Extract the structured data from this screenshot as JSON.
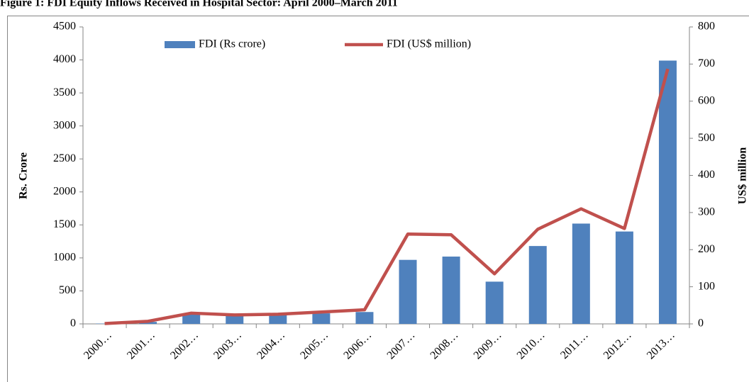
{
  "chart_data": {
    "type": "bar_line",
    "title": "Figure 1: FDI Equity Inflows Received in Hospital Sector: April 2000–March 2011",
    "y_label": "Rs. Crore",
    "y2_label": "US$ million",
    "categories": [
      "2000…",
      "2001…",
      "2002…",
      "2003…",
      "2004…",
      "2005…",
      "2006…",
      "2007…",
      "2008…",
      "2009…",
      "2010…",
      "2011…",
      "2012…",
      "2013…"
    ],
    "series": [
      {
        "name": "FDI (Rs crore)",
        "type": "bar",
        "color": "#4f81bd",
        "values": [
          5,
          30,
          160,
          130,
          140,
          160,
          180,
          970,
          1020,
          640,
          1180,
          1520,
          1400,
          3990
        ]
      },
      {
        "name": "FDI (US$ million)",
        "type": "line",
        "axis": "y2",
        "color": "#c0504d",
        "values": [
          1,
          7,
          29,
          24,
          26,
          32,
          38,
          242,
          240,
          135,
          255,
          310,
          257,
          687
        ]
      }
    ],
    "ylim": [
      0,
      4500
    ],
    "yticks": [
      0,
      500,
      1000,
      1500,
      2000,
      2500,
      3000,
      3500,
      4000,
      4500
    ],
    "y2lim": [
      0,
      800
    ],
    "y2ticks": [
      0,
      100,
      200,
      300,
      400,
      500,
      600,
      700,
      800
    ]
  }
}
